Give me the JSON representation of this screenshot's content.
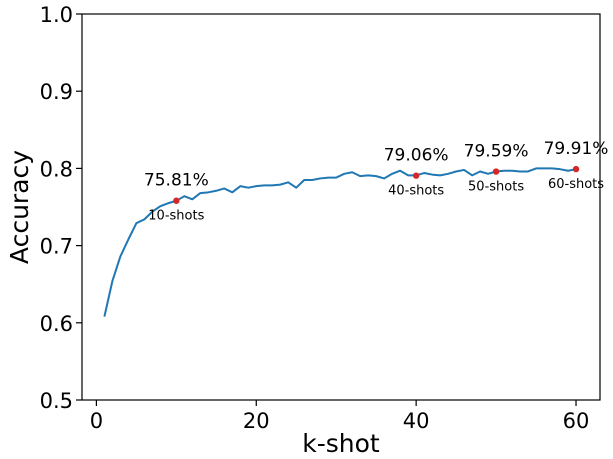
{
  "chart_data": {
    "type": "line",
    "xlabel": "k-shot",
    "ylabel": "Accuracy",
    "xlim": [
      -1.8,
      63.0
    ],
    "ylim": [
      0.5,
      1.0
    ],
    "xticks": [
      0,
      20,
      40,
      60
    ],
    "xtick_labels": [
      "0",
      "20",
      "40",
      "60"
    ],
    "yticks": [
      0.5,
      0.6,
      0.7,
      0.8,
      0.9,
      1.0
    ],
    "ytick_labels": [
      "0.5",
      "0.6",
      "0.7",
      "0.8",
      "0.9",
      "1.0"
    ],
    "grid": false,
    "line_color": "#1f77b4",
    "marker_color": "#d62728",
    "series": [
      {
        "x": [
          1,
          2,
          3,
          4,
          5,
          6,
          7,
          8,
          9,
          10,
          11,
          12,
          13,
          14,
          15,
          16,
          17,
          18,
          19,
          20,
          21,
          22,
          23,
          24,
          25,
          26,
          27,
          28,
          29,
          30,
          31,
          32,
          33,
          34,
          35,
          36,
          37,
          38,
          39,
          40,
          41,
          42,
          43,
          44,
          45,
          46,
          47,
          48,
          49,
          50,
          51,
          52,
          53,
          54,
          55,
          56,
          57,
          58,
          59,
          60
        ],
        "values": [
          0.608,
          0.654,
          0.686,
          0.708,
          0.729,
          0.734,
          0.744,
          0.751,
          0.755,
          0.758,
          0.764,
          0.76,
          0.768,
          0.769,
          0.771,
          0.774,
          0.769,
          0.777,
          0.775,
          0.777,
          0.778,
          0.778,
          0.779,
          0.782,
          0.775,
          0.785,
          0.785,
          0.787,
          0.788,
          0.788,
          0.793,
          0.795,
          0.79,
          0.791,
          0.79,
          0.787,
          0.793,
          0.797,
          0.791,
          0.791,
          0.794,
          0.792,
          0.791,
          0.793,
          0.796,
          0.798,
          0.791,
          0.796,
          0.793,
          0.796,
          0.797,
          0.797,
          0.796,
          0.796,
          0.8,
          0.8,
          0.8,
          0.799,
          0.797,
          0.799
        ]
      }
    ],
    "annotations": [
      {
        "x": 10,
        "y": 0.7581,
        "value_label": "75.81%",
        "shot_label": "10-shots"
      },
      {
        "x": 40,
        "y": 0.7906,
        "value_label": "79.06%",
        "shot_label": "40-shots"
      },
      {
        "x": 50,
        "y": 0.7959,
        "value_label": "79.59%",
        "shot_label": "50-shots"
      },
      {
        "x": 60,
        "y": 0.7991,
        "value_label": "79.91%",
        "shot_label": "60-shots"
      }
    ]
  }
}
